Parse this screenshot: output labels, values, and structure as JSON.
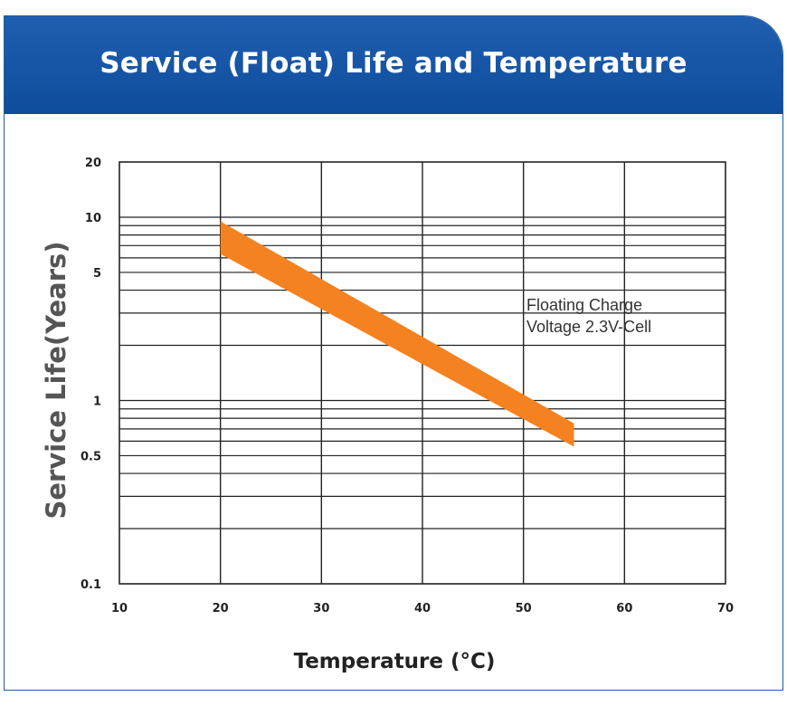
{
  "chart_data": {
    "type": "area",
    "title": "Service (Float) Life and Temperature",
    "xlabel": "Temperature (°C)",
    "ylabel": "Service Life(Years)",
    "xlim": [
      10,
      70
    ],
    "ylim": [
      0.1,
      20
    ],
    "yscale": "log",
    "grid": true,
    "x_ticks": [
      10,
      20,
      30,
      40,
      50,
      60,
      70
    ],
    "y_tick_labels": [
      "20",
      "10",
      "5",
      "1",
      "0.5",
      "0.1"
    ],
    "y_tick_values": [
      20,
      10,
      5,
      1,
      0.5,
      0.1
    ],
    "band_color": "#f58220",
    "series": [
      {
        "name": "Floating Charge Voltage 2.3V-Cell",
        "x": [
          20,
          55
        ],
        "upper": [
          9.5,
          0.75
        ],
        "lower": [
          6.3,
          0.56
        ]
      }
    ],
    "annotation": {
      "line1": "Floating Charge",
      "line2": "Voltage 2.3V-Cell"
    }
  }
}
